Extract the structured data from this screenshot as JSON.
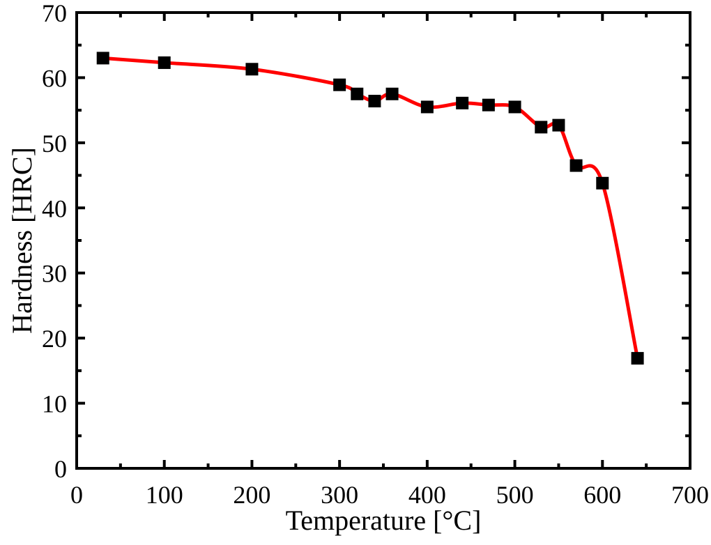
{
  "chart_data": {
    "type": "line",
    "x_label": "Temperature [°C]",
    "y_label": "Hardness [HRC]",
    "x": [
      30,
      100,
      200,
      300,
      320,
      340,
      360,
      400,
      440,
      470,
      500,
      530,
      550,
      570,
      600,
      640
    ],
    "series": [
      {
        "color": "#000000",
        "line_color": "#ff0000",
        "values": [
          63,
          62.3,
          61.3,
          58.9,
          57.5,
          56.4,
          57.5,
          55.5,
          56.1,
          55.8,
          55.5,
          52.4,
          52.7,
          46.5,
          43.8,
          16.9
        ]
      }
    ],
    "xlim": [
      0,
      700
    ],
    "ylim": [
      0,
      70
    ],
    "xticks": [
      0,
      100,
      200,
      300,
      400,
      500,
      600,
      700
    ],
    "yticks": [
      0,
      10,
      20,
      30,
      40,
      50,
      60,
      70
    ],
    "grid": false
  }
}
